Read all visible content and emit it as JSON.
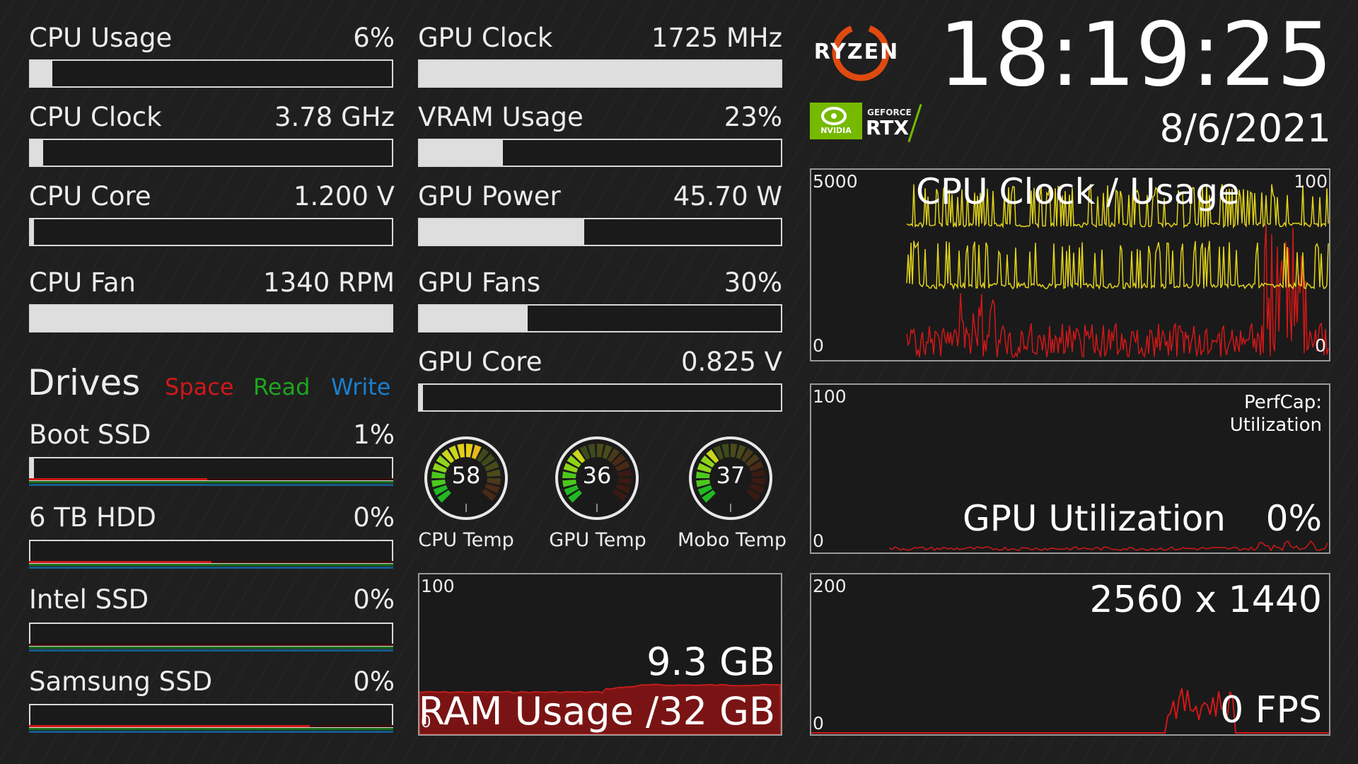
{
  "cpu": {
    "usage": {
      "label": "CPU Usage",
      "value": "6%",
      "level": 0.06
    },
    "clock": {
      "label": "CPU Clock",
      "value": "3.78 GHz",
      "level": 0.035
    },
    "core": {
      "label": "CPU Core",
      "value": "1.200 V",
      "level": 0.01
    },
    "fan": {
      "label": "CPU Fan",
      "value": "1340 RPM",
      "level": 1.0
    }
  },
  "gpu": {
    "clock": {
      "label": "GPU Clock",
      "value": "1725 MHz",
      "level": 1.0
    },
    "vram": {
      "label": "VRAM Usage",
      "value": "23%",
      "level": 0.23
    },
    "power": {
      "label": "GPU Power",
      "value": "45.70 W",
      "level": 0.455
    },
    "fans": {
      "label": "GPU Fans",
      "value": "30%",
      "level": 0.3
    },
    "core": {
      "label": "GPU Core",
      "value": "0.825 V",
      "level": 0.005
    }
  },
  "drives": {
    "title": "Drives",
    "legend": {
      "space": "Space",
      "read": "Read",
      "write": "Write"
    },
    "legend_colors": {
      "space": "#d01818",
      "read": "#1fa51f",
      "write": "#1a7fd0"
    },
    "items": [
      {
        "label": "Boot SSD",
        "value": "1%",
        "level": 0.01,
        "space_level": 0.49
      },
      {
        "label": "6 TB HDD",
        "value": "0%",
        "level": 0.0,
        "space_level": 0.5
      },
      {
        "label": "Intel SSD",
        "value": "0%",
        "level": 0.0,
        "space_level": 0.0
      },
      {
        "label": "Samsung SSD",
        "value": "0%",
        "level": 0.0,
        "space_level": 0.77
      }
    ]
  },
  "gauges": [
    {
      "value": "58",
      "label": "CPU Temp",
      "level": 0.58
    },
    {
      "value": "36",
      "label": "GPU Temp",
      "level": 0.36
    },
    {
      "value": "37",
      "label": "Mobo Temp",
      "level": 0.37
    }
  ],
  "ram": {
    "axis_max": "100",
    "axis_min": "0",
    "value": "9.3 GB",
    "title": "RAM Usage /32 GB",
    "level": 0.29
  },
  "branding": {
    "ryzen": "RYZEN",
    "geforce": "GEFORCE",
    "rtx": "RTX",
    "nvidia": "NVIDIA"
  },
  "clock": {
    "time": "18:19:25",
    "date": "8/6/2021"
  },
  "cpu_graph": {
    "title": "CPU Clock / Usage",
    "left_max": "5000",
    "left_min": "0",
    "right_max": "100",
    "right_min": "0"
  },
  "gpu_graph": {
    "axis_max": "100",
    "axis_min": "0",
    "perfcap_line1": "PerfCap:",
    "perfcap_line2": "Utilization",
    "title": "GPU Utilization",
    "value": "0%"
  },
  "fps_graph": {
    "axis_max": "200",
    "axis_min": "0",
    "resolution": "2560 x 1440",
    "value": "0",
    "unit": "FPS"
  },
  "colors": {
    "bar_fill": "#dedede",
    "accent_red": "#d01818",
    "graph_yellow": "#e0d21a",
    "ram_fill": "#7a1414"
  }
}
